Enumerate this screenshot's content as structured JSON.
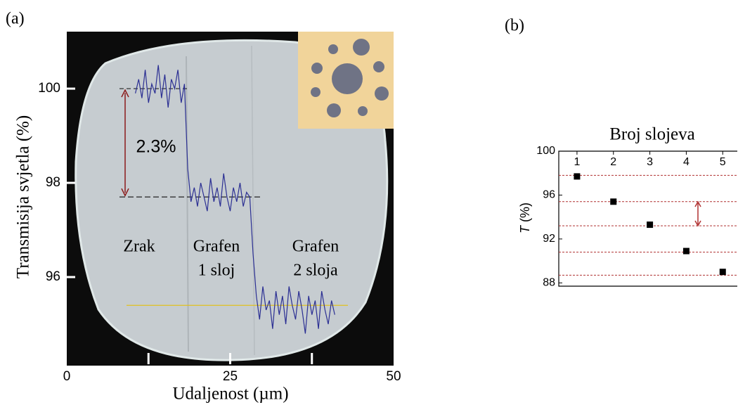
{
  "chart_data": [
    {
      "type": "line",
      "panel_label": "(a)",
      "x_label": "Udaljenost (µm)",
      "y_label": "Transmisija svjetla (%)",
      "xlim": [
        0,
        50
      ],
      "xticks": [
        0,
        25,
        50
      ],
      "xtick_marks": [
        12.5,
        25,
        37.5
      ],
      "ylim": [
        94.12,
        101.21
      ],
      "yticks": [
        96,
        98,
        100
      ],
      "reference_lines": [
        100,
        97.7,
        95.4
      ],
      "step_label": "2.3%",
      "annotations": [
        {
          "lines": [
            "Zrak"
          ]
        },
        {
          "lines": [
            "Grafen",
            "1 sloj"
          ]
        },
        {
          "lines": [
            "Grafen",
            "2 sloja"
          ]
        }
      ],
      "series": [
        {
          "color": "#2b2f93",
          "x": [
            10.5,
            11,
            11.5,
            12,
            12.5,
            13,
            13.5,
            14,
            14.5,
            15,
            15.5,
            16,
            16.5,
            17,
            17.5,
            18,
            18.5,
            19,
            19.5,
            20,
            20.5,
            21,
            21.5,
            22,
            22.5,
            23,
            23.5,
            24,
            24.5,
            25,
            25.5,
            26,
            26.5,
            27,
            27.5,
            28,
            28.5,
            29,
            29.5,
            30,
            30.5,
            31,
            31.5,
            32,
            32.5,
            33,
            33.5,
            34,
            34.5,
            35,
            35.5,
            36,
            36.5,
            37,
            37.5,
            38,
            38.5,
            39,
            39.5,
            40,
            40.5,
            41
          ],
          "values": [
            99.9,
            100.2,
            99.8,
            100.4,
            99.7,
            100.1,
            99.9,
            100.5,
            99.8,
            100.3,
            99.6,
            100.2,
            100.0,
            100.4,
            99.7,
            100.1,
            98.3,
            97.6,
            97.9,
            97.5,
            98.0,
            97.7,
            97.4,
            98.1,
            97.6,
            97.9,
            97.5,
            98.2,
            97.7,
            97.4,
            97.9,
            97.6,
            98.0,
            97.5,
            97.8,
            97.7,
            96.5,
            95.6,
            95.1,
            95.8,
            95.3,
            95.5,
            94.9,
            95.7,
            95.2,
            95.6,
            95.0,
            95.8,
            95.4,
            95.1,
            95.7,
            95.3,
            94.8,
            95.6,
            95.2,
            95.5,
            94.9,
            95.7,
            95.3,
            95.0,
            95.5,
            95.2
          ]
        }
      ]
    },
    {
      "type": "scatter",
      "panel_label": "(b)",
      "title": "Broj slojeva",
      "y_label_symbol": "T",
      "y_label_unit": "(%)",
      "xlim": [
        0.5,
        5.4
      ],
      "xticks": [
        1,
        2,
        3,
        4,
        5
      ],
      "ylim": [
        87.7,
        100
      ],
      "yticks": [
        88,
        92,
        96,
        100
      ],
      "guide_lines": [
        97.8,
        95.4,
        93.2,
        90.8,
        88.7
      ],
      "guide_color": "#b03030",
      "series": [
        {
          "color": "#000000",
          "x": [
            1,
            2,
            3,
            4,
            5
          ],
          "values": [
            97.7,
            95.4,
            93.3,
            90.9,
            89.0
          ]
        }
      ]
    }
  ]
}
